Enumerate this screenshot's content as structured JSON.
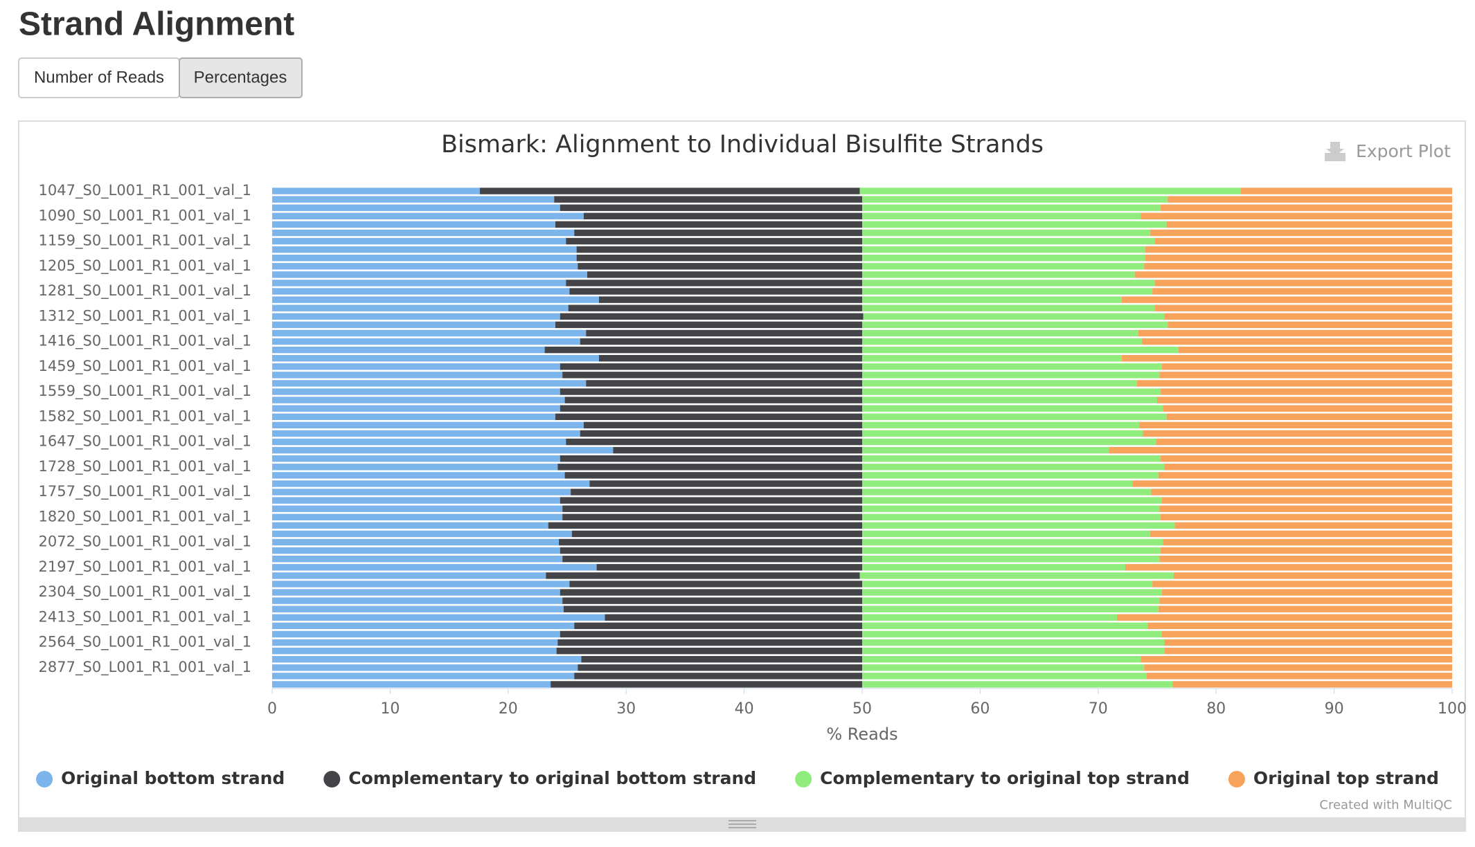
{
  "header": {
    "title": "Strand Alignment",
    "buttons": [
      "Number of Reads",
      "Percentages"
    ]
  },
  "export_label": "Export Plot",
  "credit": "Created with MultiQC",
  "chart_data": {
    "type": "bar",
    "orientation": "horizontal",
    "stacked": true,
    "title": "Bismark: Alignment to Individual Bisulfite Strands",
    "x_label": "% Reads",
    "categories": [
      "1047_S0_L001_R1_001_val_1",
      null,
      null,
      "1090_S0_L001_R1_001_val_1",
      null,
      null,
      "1159_S0_L001_R1_001_val_1",
      null,
      null,
      "1205_S0_L001_R1_001_val_1",
      null,
      null,
      "1281_S0_L001_R1_001_val_1",
      null,
      null,
      "1312_S0_L001_R1_001_val_1",
      null,
      null,
      "1416_S0_L001_R1_001_val_1",
      null,
      null,
      "1459_S0_L001_R1_001_val_1",
      null,
      null,
      "1559_S0_L001_R1_001_val_1",
      null,
      null,
      "1582_S0_L001_R1_001_val_1",
      null,
      null,
      "1647_S0_L001_R1_001_val_1",
      null,
      null,
      "1728_S0_L001_R1_001_val_1",
      null,
      null,
      "1757_S0_L001_R1_001_val_1",
      null,
      null,
      "1820_S0_L001_R1_001_val_1",
      null,
      null,
      "2072_S0_L001_R1_001_val_1",
      null,
      null,
      "2197_S0_L001_R1_001_val_1",
      null,
      null,
      "2304_S0_L001_R1_001_val_1",
      null,
      null,
      "2413_S0_L001_R1_001_val_1",
      null,
      null,
      "2564_S0_L001_R1_001_val_1",
      null,
      null,
      "2877_S0_L001_R1_001_val_1",
      null,
      null
    ],
    "series": [
      {
        "name": "Original bottom strand",
        "color": "#7cb5ec",
        "values": [
          17.6,
          23.9,
          24.4,
          26.4,
          24.0,
          25.6,
          24.9,
          25.8,
          25.8,
          25.9,
          26.7,
          24.9,
          25.2,
          27.7,
          25.1,
          24.4,
          24.0,
          26.6,
          26.1,
          23.1,
          27.7,
          24.4,
          24.6,
          26.6,
          24.4,
          24.8,
          24.4,
          24.0,
          26.4,
          26.1,
          24.9,
          28.9,
          24.4,
          24.2,
          24.8,
          26.9,
          25.3,
          24.4,
          24.6,
          24.6,
          23.4,
          25.4,
          24.3,
          24.4,
          24.6,
          27.5,
          23.2,
          25.2,
          24.4,
          24.6,
          24.7,
          28.2,
          25.6,
          24.4,
          24.2,
          24.1,
          26.2,
          25.9,
          25.6,
          23.6
        ]
      },
      {
        "name": "Complementary to original bottom strand",
        "color": "#434348",
        "values": [
          32.2,
          26.1,
          25.6,
          23.6,
          26.0,
          24.4,
          25.1,
          24.2,
          24.2,
          24.1,
          23.3,
          25.1,
          24.8,
          22.3,
          24.9,
          25.7,
          26.0,
          23.4,
          23.9,
          26.9,
          22.3,
          25.6,
          25.4,
          23.4,
          25.6,
          25.2,
          25.6,
          26.0,
          23.6,
          23.9,
          25.1,
          21.1,
          25.6,
          25.8,
          25.2,
          23.1,
          24.7,
          25.6,
          25.4,
          25.4,
          26.6,
          24.6,
          25.7,
          25.6,
          25.4,
          22.5,
          26.6,
          24.8,
          25.6,
          25.4,
          25.3,
          21.8,
          24.4,
          25.6,
          25.8,
          25.9,
          23.8,
          24.1,
          24.4,
          26.4
        ]
      },
      {
        "name": "Complementary to original top strand",
        "color": "#90ed7d",
        "values": [
          32.3,
          25.9,
          25.3,
          23.6,
          25.8,
          24.4,
          24.8,
          24.0,
          24.0,
          23.9,
          23.1,
          24.8,
          24.6,
          22.0,
          24.8,
          25.5,
          25.9,
          23.4,
          23.7,
          26.8,
          22.0,
          25.4,
          25.2,
          23.3,
          25.3,
          25.0,
          25.5,
          25.8,
          23.5,
          23.8,
          24.9,
          20.9,
          25.3,
          25.6,
          25.1,
          22.9,
          24.5,
          25.4,
          25.2,
          25.3,
          26.5,
          24.4,
          25.5,
          25.3,
          25.2,
          22.3,
          26.6,
          24.6,
          25.4,
          25.2,
          25.1,
          21.6,
          24.2,
          25.4,
          25.6,
          25.6,
          23.6,
          23.9,
          24.1,
          26.3
        ]
      },
      {
        "name": "Original top strand",
        "color": "#f7a35c",
        "values": [
          17.9,
          24.1,
          24.7,
          26.4,
          24.2,
          25.6,
          25.2,
          26.0,
          26.0,
          26.1,
          26.9,
          25.2,
          25.4,
          28.0,
          25.2,
          24.4,
          24.1,
          26.6,
          26.3,
          23.2,
          28.0,
          24.6,
          24.8,
          26.7,
          24.7,
          25.0,
          24.5,
          24.2,
          26.5,
          26.2,
          25.1,
          29.1,
          24.7,
          24.4,
          24.9,
          27.1,
          25.5,
          24.6,
          24.8,
          24.7,
          23.5,
          25.6,
          24.5,
          24.7,
          24.8,
          27.7,
          23.6,
          25.4,
          24.6,
          24.8,
          24.9,
          28.4,
          25.8,
          24.6,
          24.4,
          24.4,
          26.4,
          26.1,
          25.9,
          23.7
        ]
      }
    ],
    "xlim": [
      0,
      100
    ],
    "xticks": [
      0,
      10,
      20,
      30,
      40,
      50,
      60,
      70,
      80,
      90,
      100
    ],
    "grid": false,
    "legend": "bottom"
  }
}
